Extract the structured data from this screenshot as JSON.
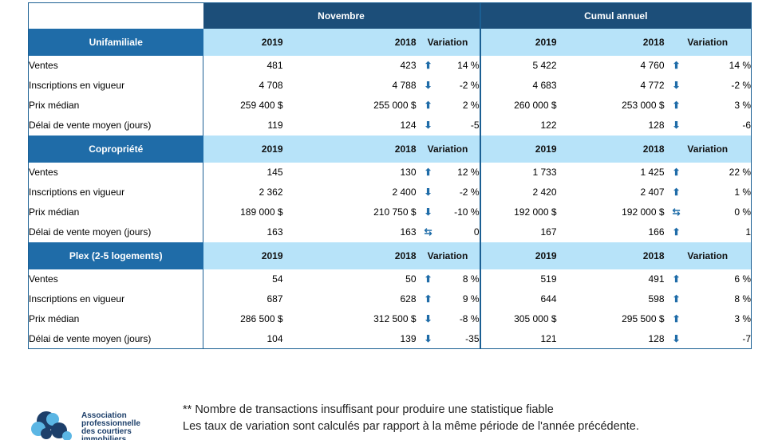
{
  "table": {
    "periods": [
      "Novembre",
      "Cumul annuel"
    ],
    "sections": [
      {
        "name": "Unifamiliale",
        "columns": [
          "2019",
          "2018",
          "Variation",
          "2019",
          "2018",
          "Variation"
        ],
        "rows": [
          {
            "label": "Ventes",
            "nov_2019": "481",
            "nov_2018": "423",
            "nov_dir": "up",
            "nov_var": "14 %",
            "cum_2019": "5 422",
            "cum_2018": "4 760",
            "cum_dir": "up",
            "cum_var": "14 %"
          },
          {
            "label": "Inscriptions en vigueur",
            "nov_2019": "4 708",
            "nov_2018": "4 788",
            "nov_dir": "down",
            "nov_var": "-2 %",
            "cum_2019": "4 683",
            "cum_2018": "4 772",
            "cum_dir": "down",
            "cum_var": "-2 %"
          },
          {
            "label": "Prix médian",
            "nov_2019": "259 400 $",
            "nov_2018": "255 000 $",
            "nov_dir": "up",
            "nov_var": "2 %",
            "cum_2019": "260 000 $",
            "cum_2018": "253 000 $",
            "cum_dir": "up",
            "cum_var": "3 %"
          },
          {
            "label": "Délai de vente moyen (jours)",
            "nov_2019": "119",
            "nov_2018": "124",
            "nov_dir": "down",
            "nov_var": "-5",
            "cum_2019": "122",
            "cum_2018": "128",
            "cum_dir": "down",
            "cum_var": "-6"
          }
        ]
      },
      {
        "name": "Copropriété",
        "columns": [
          "2019",
          "2018",
          "Variation",
          "2019",
          "2018",
          "Variation"
        ],
        "rows": [
          {
            "label": "Ventes",
            "nov_2019": "145",
            "nov_2018": "130",
            "nov_dir": "up",
            "nov_var": "12 %",
            "cum_2019": "1 733",
            "cum_2018": "1 425",
            "cum_dir": "up",
            "cum_var": "22 %"
          },
          {
            "label": "Inscriptions en vigueur",
            "nov_2019": "2 362",
            "nov_2018": "2 400",
            "nov_dir": "down",
            "nov_var": "-2 %",
            "cum_2019": "2 420",
            "cum_2018": "2 407",
            "cum_dir": "up",
            "cum_var": "1 %"
          },
          {
            "label": "Prix médian",
            "nov_2019": "189 000 $",
            "nov_2018": "210 750 $",
            "nov_dir": "down",
            "nov_var": "-10 %",
            "cum_2019": "192 000 $",
            "cum_2018": "192 000 $",
            "cum_dir": "flat",
            "cum_var": "0 %"
          },
          {
            "label": "Délai de vente moyen (jours)",
            "nov_2019": "163",
            "nov_2018": "163",
            "nov_dir": "flat",
            "nov_var": "0",
            "cum_2019": "167",
            "cum_2018": "166",
            "cum_dir": "up",
            "cum_var": "1"
          }
        ]
      },
      {
        "name": "Plex (2-5 logements)",
        "columns": [
          "2019",
          "2018",
          "Variation",
          "2019",
          "2018",
          "Variation"
        ],
        "rows": [
          {
            "label": "Ventes",
            "nov_2019": "54",
            "nov_2018": "50",
            "nov_dir": "up",
            "nov_var": "8 %",
            "cum_2019": "519",
            "cum_2018": "491",
            "cum_dir": "up",
            "cum_var": "6 %"
          },
          {
            "label": "Inscriptions en vigueur",
            "nov_2019": "687",
            "nov_2018": "628",
            "nov_dir": "up",
            "nov_var": "9 %",
            "cum_2019": "644",
            "cum_2018": "598",
            "cum_dir": "up",
            "cum_var": "8 %"
          },
          {
            "label": "Prix médian",
            "nov_2019": "286 500 $",
            "nov_2018": "312 500 $",
            "nov_dir": "down",
            "nov_var": "-8 %",
            "cum_2019": "305 000 $",
            "cum_2018": "295 500 $",
            "cum_dir": "up",
            "cum_var": "3 %"
          },
          {
            "label": "Délai de vente moyen (jours)",
            "nov_2019": "104",
            "nov_2018": "139",
            "nov_dir": "down",
            "nov_var": "-35",
            "cum_2019": "121",
            "cum_2018": "128",
            "cum_dir": "down",
            "cum_var": "-7"
          }
        ]
      }
    ]
  },
  "footnotes": [
    "** Nombre de transactions insuffisant pour produire une statistique fiable",
    "Les taux de variation sont calculés par rapport à la même période de l'année précédente."
  ],
  "logo": {
    "lines": [
      "Association",
      "professionnelle",
      "des courtiers",
      "immobiliers"
    ],
    "colors": {
      "dark": "#1d3f6a",
      "light": "#5bb6e4"
    }
  },
  "arrow_glyphs": {
    "up": "⬆",
    "down": "⬇",
    "flat": "⇆"
  }
}
